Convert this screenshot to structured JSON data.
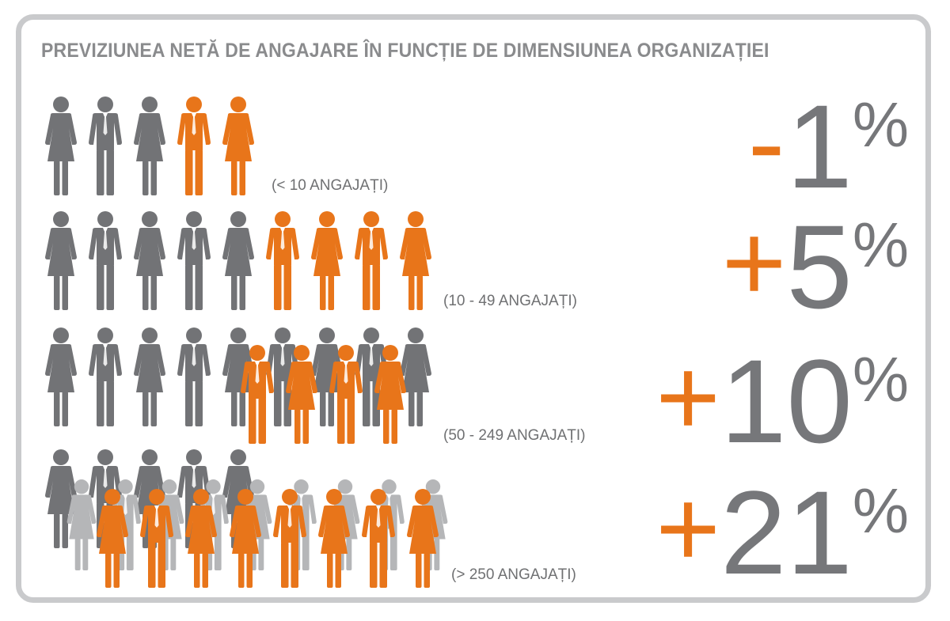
{
  "title": "PREVIZIUNEA NETĂ DE ANGAJARE ÎN FUNCȚIE DE DIMENSIUNEA ORGANIZAȚIEI",
  "colors": {
    "orange": "#e8751a",
    "dark_gray": "#727376",
    "light_gray": "#b5b6b8",
    "text_gray": "#8a8b8d",
    "frame": "#c9cacc"
  },
  "rows": [
    {
      "label": "(< 10 ANGAJAȚI)",
      "sign": "-",
      "number": "1",
      "percent": "%",
      "back_people": [
        "female-gray",
        "male-gray",
        "female-gray",
        "male-orange",
        "female-orange"
      ],
      "front_people": [],
      "rear_people": []
    },
    {
      "label": "(10 - 49 ANGAJAȚI)",
      "sign": "+",
      "number": "5",
      "percent": "%",
      "back_people": [
        "female-gray",
        "male-gray",
        "female-gray",
        "male-gray",
        "female-gray",
        "male-orange",
        "female-orange",
        "male-orange",
        "female-orange"
      ],
      "front_people": [],
      "rear_people": []
    },
    {
      "label": "(50 - 249 ANGAJAȚI)",
      "sign": "+",
      "number": "10",
      "percent": "%",
      "back_people": [
        "female-gray",
        "male-gray",
        "female-gray",
        "male-gray",
        "female-gray",
        "male-gray",
        "female-gray",
        "male-gray",
        "female-gray"
      ],
      "front_people": [
        "male-orange",
        "female-orange",
        "male-orange",
        "female-orange"
      ],
      "rear_people": []
    },
    {
      "label": "(> 250 ANGAJAȚI)",
      "sign": "+",
      "number": "21",
      "percent": "%",
      "back_people": [
        "female-gray",
        "male-gray",
        "female-gray",
        "male-gray",
        "female-gray"
      ],
      "rear_people": [
        "female-light",
        "male-light",
        "female-light",
        "male-light",
        "female-light",
        "male-light",
        "female-light",
        "male-light",
        "female-light"
      ],
      "front_people": [
        "female-orange",
        "male-orange",
        "female-orange",
        "female-orange",
        "male-orange",
        "female-orange",
        "male-orange",
        "female-orange"
      ]
    }
  ]
}
